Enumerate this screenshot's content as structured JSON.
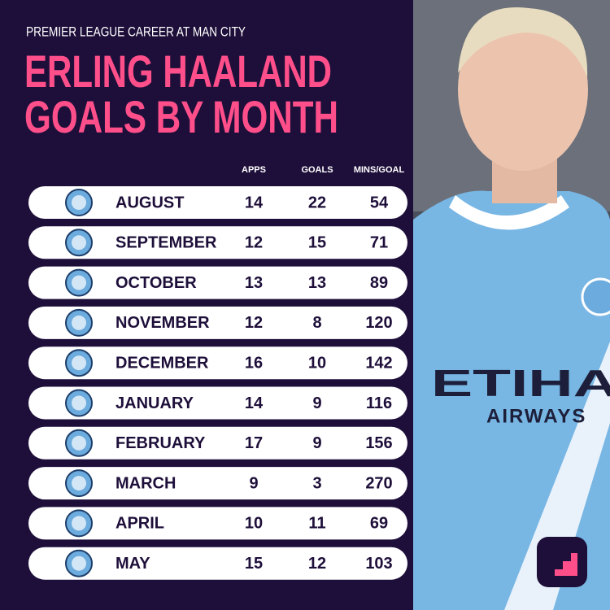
{
  "header": {
    "subtitle": "PREMIER LEAGUE CAREER AT MAN CITY",
    "title_lines": [
      "ERLING HAALAND",
      "GOALS BY MONTH"
    ]
  },
  "table": {
    "columns": [
      "APPS",
      "GOALS",
      "MINS/GOAL"
    ],
    "rows": [
      [
        "AUGUST",
        14,
        22,
        54
      ],
      [
        "SEPTEMBER",
        12,
        15,
        71
      ],
      [
        "OCTOBER",
        13,
        13,
        89
      ],
      [
        "NOVEMBER",
        12,
        8,
        120
      ],
      [
        "DECEMBER",
        16,
        10,
        142
      ],
      [
        "JANUARY",
        14,
        9,
        116
      ],
      [
        "FEBRUARY",
        17,
        9,
        156
      ],
      [
        "MARCH",
        9,
        3,
        270
      ],
      [
        "APRIL",
        10,
        11,
        69
      ],
      [
        "MAY",
        15,
        12,
        103
      ]
    ]
  },
  "photo": {
    "sponsor": "ETIHA",
    "sponsor_sub": "AIRWAYS"
  }
}
